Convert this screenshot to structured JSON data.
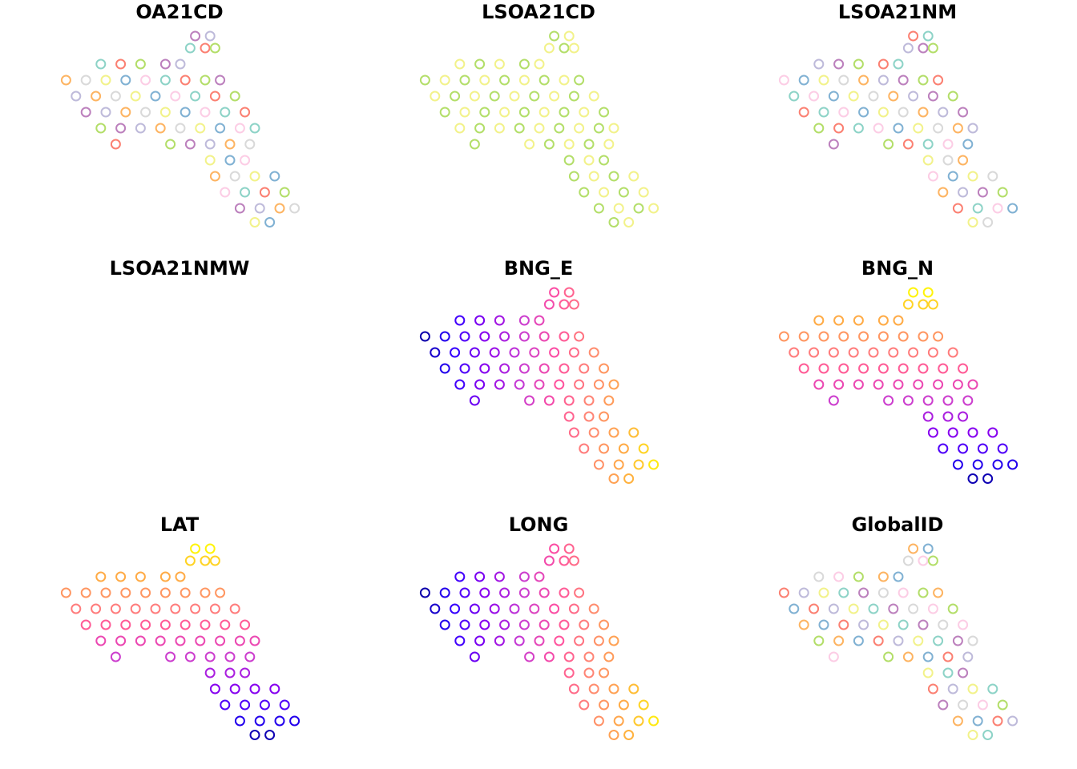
{
  "chart_data": {
    "type": "scatter",
    "xlim": [
      0,
      100
    ],
    "ylim": [
      0,
      100
    ],
    "x": [
      18,
      26,
      34,
      44,
      50,
      4,
      12,
      20,
      28,
      36,
      44,
      52,
      60,
      66,
      8,
      16,
      24,
      32,
      40,
      48,
      56,
      64,
      72,
      12,
      20,
      28,
      36,
      44,
      52,
      60,
      68,
      76,
      18,
      26,
      34,
      42,
      50,
      58,
      66,
      74,
      80,
      24,
      46,
      54,
      62,
      70,
      78,
      62,
      70,
      76,
      54,
      60,
      64,
      56,
      62,
      64,
      72,
      80,
      88,
      68,
      76,
      84,
      92,
      74,
      82,
      90,
      96,
      80,
      86
    ],
    "y": [
      84,
      84,
      84,
      84,
      84,
      76,
      76,
      76,
      76,
      76,
      76,
      76,
      76,
      76,
      68,
      68,
      68,
      68,
      68,
      68,
      68,
      68,
      68,
      60,
      60,
      60,
      60,
      60,
      60,
      60,
      60,
      60,
      52,
      52,
      52,
      52,
      52,
      52,
      52,
      52,
      52,
      44,
      44,
      44,
      44,
      44,
      44,
      36,
      36,
      36,
      92,
      92,
      92,
      98,
      98,
      28,
      28,
      28,
      28,
      20,
      20,
      20,
      20,
      12,
      12,
      12,
      12,
      5,
      5
    ],
    "categorical_colors": [
      "#8DD3C7",
      "#F2F28A",
      "#BEBADA",
      "#FB8072",
      "#80B1D3",
      "#FDB462",
      "#B3DE69",
      "#FCCDE5",
      "#D9D9D9",
      "#BC80BD"
    ],
    "continuous_colors": [
      "#00008B",
      "#2A00FF",
      "#8A00EE",
      "#C83CD2",
      "#FF4FA0",
      "#FF8A70",
      "#FFB040",
      "#FFFF00"
    ],
    "panels": [
      {
        "title": "OA21CD",
        "color_by": "category"
      },
      {
        "title": "LSOA21CD",
        "color_by": "category"
      },
      {
        "title": "LSOA21NM",
        "color_by": "category"
      },
      {
        "title": "LSOA21NMW",
        "color_by": null
      },
      {
        "title": "BNG_E",
        "color_by": "x"
      },
      {
        "title": "BNG_N",
        "color_by": "y"
      },
      {
        "title": "LAT",
        "color_by": "y"
      },
      {
        "title": "LONG",
        "color_by": "x"
      },
      {
        "title": "GlobalID",
        "color_by": "category"
      }
    ]
  }
}
